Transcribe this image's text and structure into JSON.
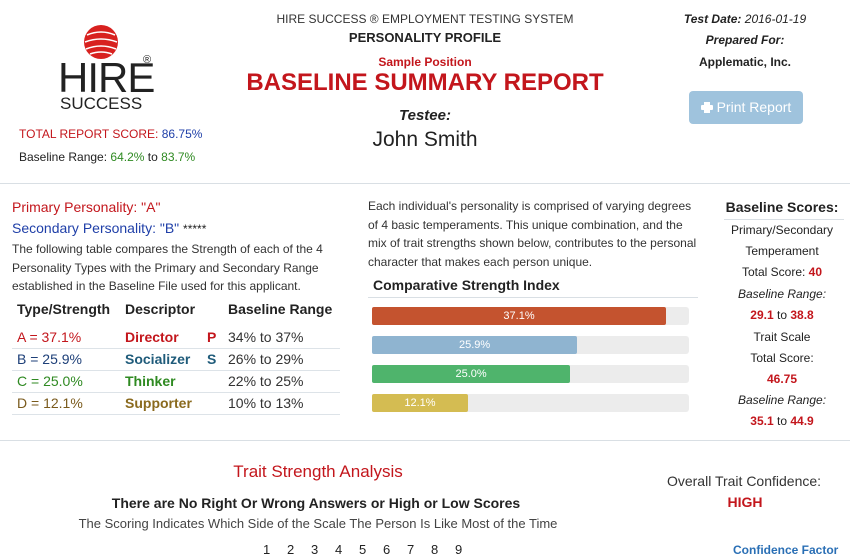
{
  "logo": {
    "line1": "HIRE",
    "mark": "®",
    "line2": "SUCCESS"
  },
  "score": {
    "label": "TOTAL REPORT SCORE:",
    "value": "86.75%",
    "range_label": "Baseline Range:",
    "range_low": "64.2%",
    "range_sep": "to",
    "range_high": "83.7%"
  },
  "header": {
    "system": "HIRE SUCCESS ® EMPLOYMENT TESTING SYSTEM",
    "profile": "PERSONALITY PROFILE",
    "position": "Sample Position",
    "title": "BASELINE SUMMARY REPORT",
    "testee_label": "Testee:",
    "testee": "John Smith"
  },
  "meta": {
    "date_label": "Test Date:",
    "date": "2016-01-19",
    "prepared_label": "Prepared For:",
    "company": "Applematic, Inc.",
    "print_button": "Print Report"
  },
  "personality": {
    "primary": "Primary Personality: \"A\"",
    "secondary": "Secondary Personality: \"B\"",
    "stars": "*****",
    "description": "The following table compares the Strength of each of the 4 Personality Types with the Primary and Secondary Range established in the Baseline File used for this applicant.",
    "table": {
      "headers": [
        "Type/Strength",
        "Descriptor",
        "Baseline Range"
      ],
      "rows": [
        [
          "A = 37.1%",
          "Director",
          "P",
          "34% to 37%"
        ],
        [
          "B = 25.9%",
          "Socializer",
          "S",
          "26% to 29%"
        ],
        [
          "C = 25.0%",
          "Thinker",
          null,
          "22% to 25%"
        ],
        [
          "D = 12.1%",
          "Supporter",
          null,
          "10% to 13%"
        ]
      ]
    }
  },
  "temperaments": {
    "description": "Each individual's personality is comprised of varying degrees of 4 basic temperaments. This unique combination, and the mix of trait strengths shown below, contributes to the personal character that makes each person unique."
  },
  "strength_index": {
    "title": "Comparative Strength Index",
    "xlim": [
      0,
      40
    ],
    "bars": [
      {
        "value": 37.1,
        "label": "37.1%",
        "color": "#c4532f"
      },
      {
        "value": 25.9,
        "label": "25.9%",
        "color": "#8fb4d0"
      },
      {
        "value": 25.0,
        "label": "25.0%",
        "color": "#4fb46c"
      },
      {
        "value": 12.1,
        "label": "12.1%",
        "color": "#d4bc52"
      }
    ]
  },
  "baseline_scores": {
    "title": "Baseline Scores:",
    "section1_line1": "Primary/Secondary",
    "section1_line2": "Temperament",
    "total_label1": "Total Score:",
    "total1": "40",
    "range_label1": "Baseline Range:",
    "range1_low": "29.1",
    "range1_sep": "to",
    "range1_high": "38.8",
    "section2": "Trait Scale",
    "total_label2": "Total Score:",
    "total2": "46.75",
    "range_label2": "Baseline Range:",
    "range2_low": "35.1",
    "range2_sep": "to",
    "range2_high": "44.9"
  },
  "trait": {
    "title": "Trait Strength Analysis",
    "subtitle": "There are No Right Or Wrong Answers or High or Low Scores",
    "note": "The Scoring Indicates Which Side of the Scale The Person Is Like Most of the Time",
    "scale": [
      1,
      2,
      3,
      4,
      5,
      6,
      7,
      8,
      9
    ],
    "confidence_label": "Overall Trait Confidence:",
    "confidence": "HIGH",
    "confidence_factor": "Confidence Factor"
  }
}
